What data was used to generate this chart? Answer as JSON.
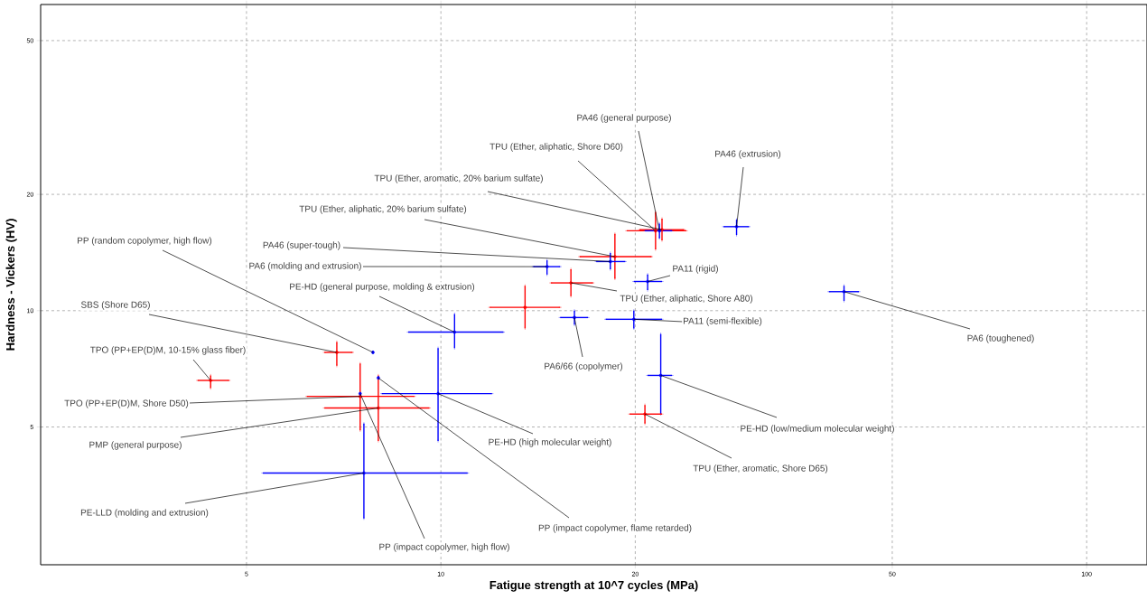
{
  "chart_data": {
    "type": "scatter",
    "xlabel": "Fatigue strength at 10^7 cycles (MPa)",
    "ylabel": "Hardness - Vickers (HV)",
    "log": "xy",
    "grid": true,
    "xlim": [
      2.4,
      124
    ],
    "ylim": [
      2.2,
      62
    ],
    "xticks": [
      5,
      10,
      20,
      50,
      100
    ],
    "yticks": [
      5,
      10,
      20,
      50
    ],
    "series": [
      {
        "color": "#ff0000",
        "x": [
          4.4,
          6.9,
          7.5,
          8.0,
          20.7,
          21.5,
          22.0,
          18.6,
          15.9,
          13.5
        ],
        "values": [
          6.6,
          7.8,
          6.0,
          5.6,
          5.4,
          16.1,
          16.2,
          13.8,
          11.8,
          10.2
        ],
        "xerrors": [
          [
            4.2,
            4.7
          ],
          [
            6.6,
            7.3
          ],
          [
            6.2,
            9.1
          ],
          [
            6.6,
            9.6
          ],
          [
            19.6,
            22.0
          ],
          [
            19.4,
            24.0
          ],
          [
            20.3,
            23.8
          ],
          [
            16.4,
            21.2
          ],
          [
            14.8,
            17.2
          ],
          [
            11.9,
            15.3
          ]
        ],
        "errors": [
          [
            6.3,
            6.8
          ],
          [
            7.2,
            8.3
          ],
          [
            4.9,
            7.3
          ],
          [
            4.6,
            6.8
          ],
          [
            5.1,
            5.7
          ],
          [
            14.4,
            18.0
          ],
          [
            15.2,
            17.3
          ],
          [
            12.1,
            15.8
          ],
          [
            10.9,
            12.8
          ],
          [
            9.0,
            11.6
          ]
        ]
      },
      {
        "color": "#0000ff",
        "x": [
          7.6,
          9.9,
          10.5,
          7.85,
          7.5,
          8.0,
          14.6,
          18.3,
          21.8,
          28.7,
          20.9,
          16.1,
          19.9,
          21.9,
          42.1
        ],
        "values": [
          3.8,
          6.1,
          8.8,
          7.8,
          6.1,
          6.7,
          13.0,
          13.4,
          16.1,
          16.5,
          11.9,
          9.6,
          9.5,
          6.8,
          11.2
        ],
        "xerrors": [
          [
            5.3,
            11.0
          ],
          [
            8.1,
            12.0
          ],
          [
            8.9,
            12.5
          ],
          null,
          null,
          null,
          [
            13.9,
            15.3
          ],
          [
            17.4,
            19.3
          ],
          [
            20.7,
            22.8
          ],
          [
            27.4,
            30.0
          ],
          [
            19.9,
            22.0
          ],
          [
            15.3,
            16.9
          ],
          [
            18.0,
            22.0
          ],
          [
            20.9,
            22.8
          ],
          [
            39.9,
            44.4
          ]
        ],
        "errors": [
          [
            2.9,
            5.1
          ],
          [
            4.6,
            8.0
          ],
          [
            8.0,
            9.8
          ],
          null,
          null,
          null,
          [
            12.4,
            13.5
          ],
          [
            12.8,
            14.1
          ],
          [
            15.4,
            16.8
          ],
          [
            15.7,
            17.2
          ],
          [
            11.3,
            12.4
          ],
          [
            9.2,
            10.0
          ],
          [
            9.0,
            10.0
          ],
          [
            5.4,
            8.7
          ],
          [
            10.6,
            11.6
          ]
        ]
      }
    ],
    "annotations": [
      {
        "text": "PA46 (general purpose)",
        "x": 21.8,
        "y": 16.1
      },
      {
        "text": "TPU (Ether, aliphatic, Shore D60)",
        "x": 21.5,
        "y": 16.1
      },
      {
        "text": "TPU (Ether, aromatic, 20% barium sulfate)",
        "x": 22.0,
        "y": 16.2
      },
      {
        "text": "TPU (Ether, aliphatic, 20% barium sulfate)",
        "x": 18.6,
        "y": 13.8
      },
      {
        "text": "PA46 (extrusion)",
        "x": 28.7,
        "y": 16.5
      },
      {
        "text": "PP (random copolymer, high flow)",
        "x": 7.85,
        "y": 7.8
      },
      {
        "text": "PA46 (super-tough)",
        "x": 18.3,
        "y": 13.4
      },
      {
        "text": "PA6 (molding and extrusion)",
        "x": 14.6,
        "y": 13.0
      },
      {
        "text": "PE-HD (general purpose, molding & extrusion)",
        "x": 10.5,
        "y": 8.8
      },
      {
        "text": "PA11 (rigid)",
        "x": 20.9,
        "y": 11.9
      },
      {
        "text": "TPU (Ether, aliphatic, Shore A80)",
        "x": 15.9,
        "y": 11.8
      },
      {
        "text": "SBS (Shore D65)",
        "x": 6.9,
        "y": 7.8
      },
      {
        "text": "PA11 (semi-flexible)",
        "x": 19.9,
        "y": 9.5
      },
      {
        "text": "PA6 (toughened)",
        "x": 42.1,
        "y": 11.2
      },
      {
        "text": "TPO (PP+EP(D)M, 10-15% glass fiber)",
        "x": 4.4,
        "y": 6.6
      },
      {
        "text": "PA6/66 (copolymer)",
        "x": 16.1,
        "y": 9.6
      },
      {
        "text": "TPO (PP+EP(D)M, Shore D50)",
        "x": 7.5,
        "y": 6.0
      },
      {
        "text": "PE-HD (low/medium molecular weight)",
        "x": 21.9,
        "y": 6.8
      },
      {
        "text": "PMP (general purpose)",
        "x": 8.0,
        "y": 5.6
      },
      {
        "text": "PE-HD (high molecular weight)",
        "x": 9.9,
        "y": 6.1
      },
      {
        "text": "TPU (Ether, aromatic, Shore D65)",
        "x": 20.7,
        "y": 5.4
      },
      {
        "text": "PE-LLD (molding and extrusion)",
        "x": 7.6,
        "y": 3.8
      },
      {
        "text": "PP (impact copolymer, flame retarded)",
        "x": 8.0,
        "y": 6.7
      },
      {
        "text": "PP (impact copolymer, high flow)",
        "x": 7.5,
        "y": 6.1
      }
    ]
  }
}
